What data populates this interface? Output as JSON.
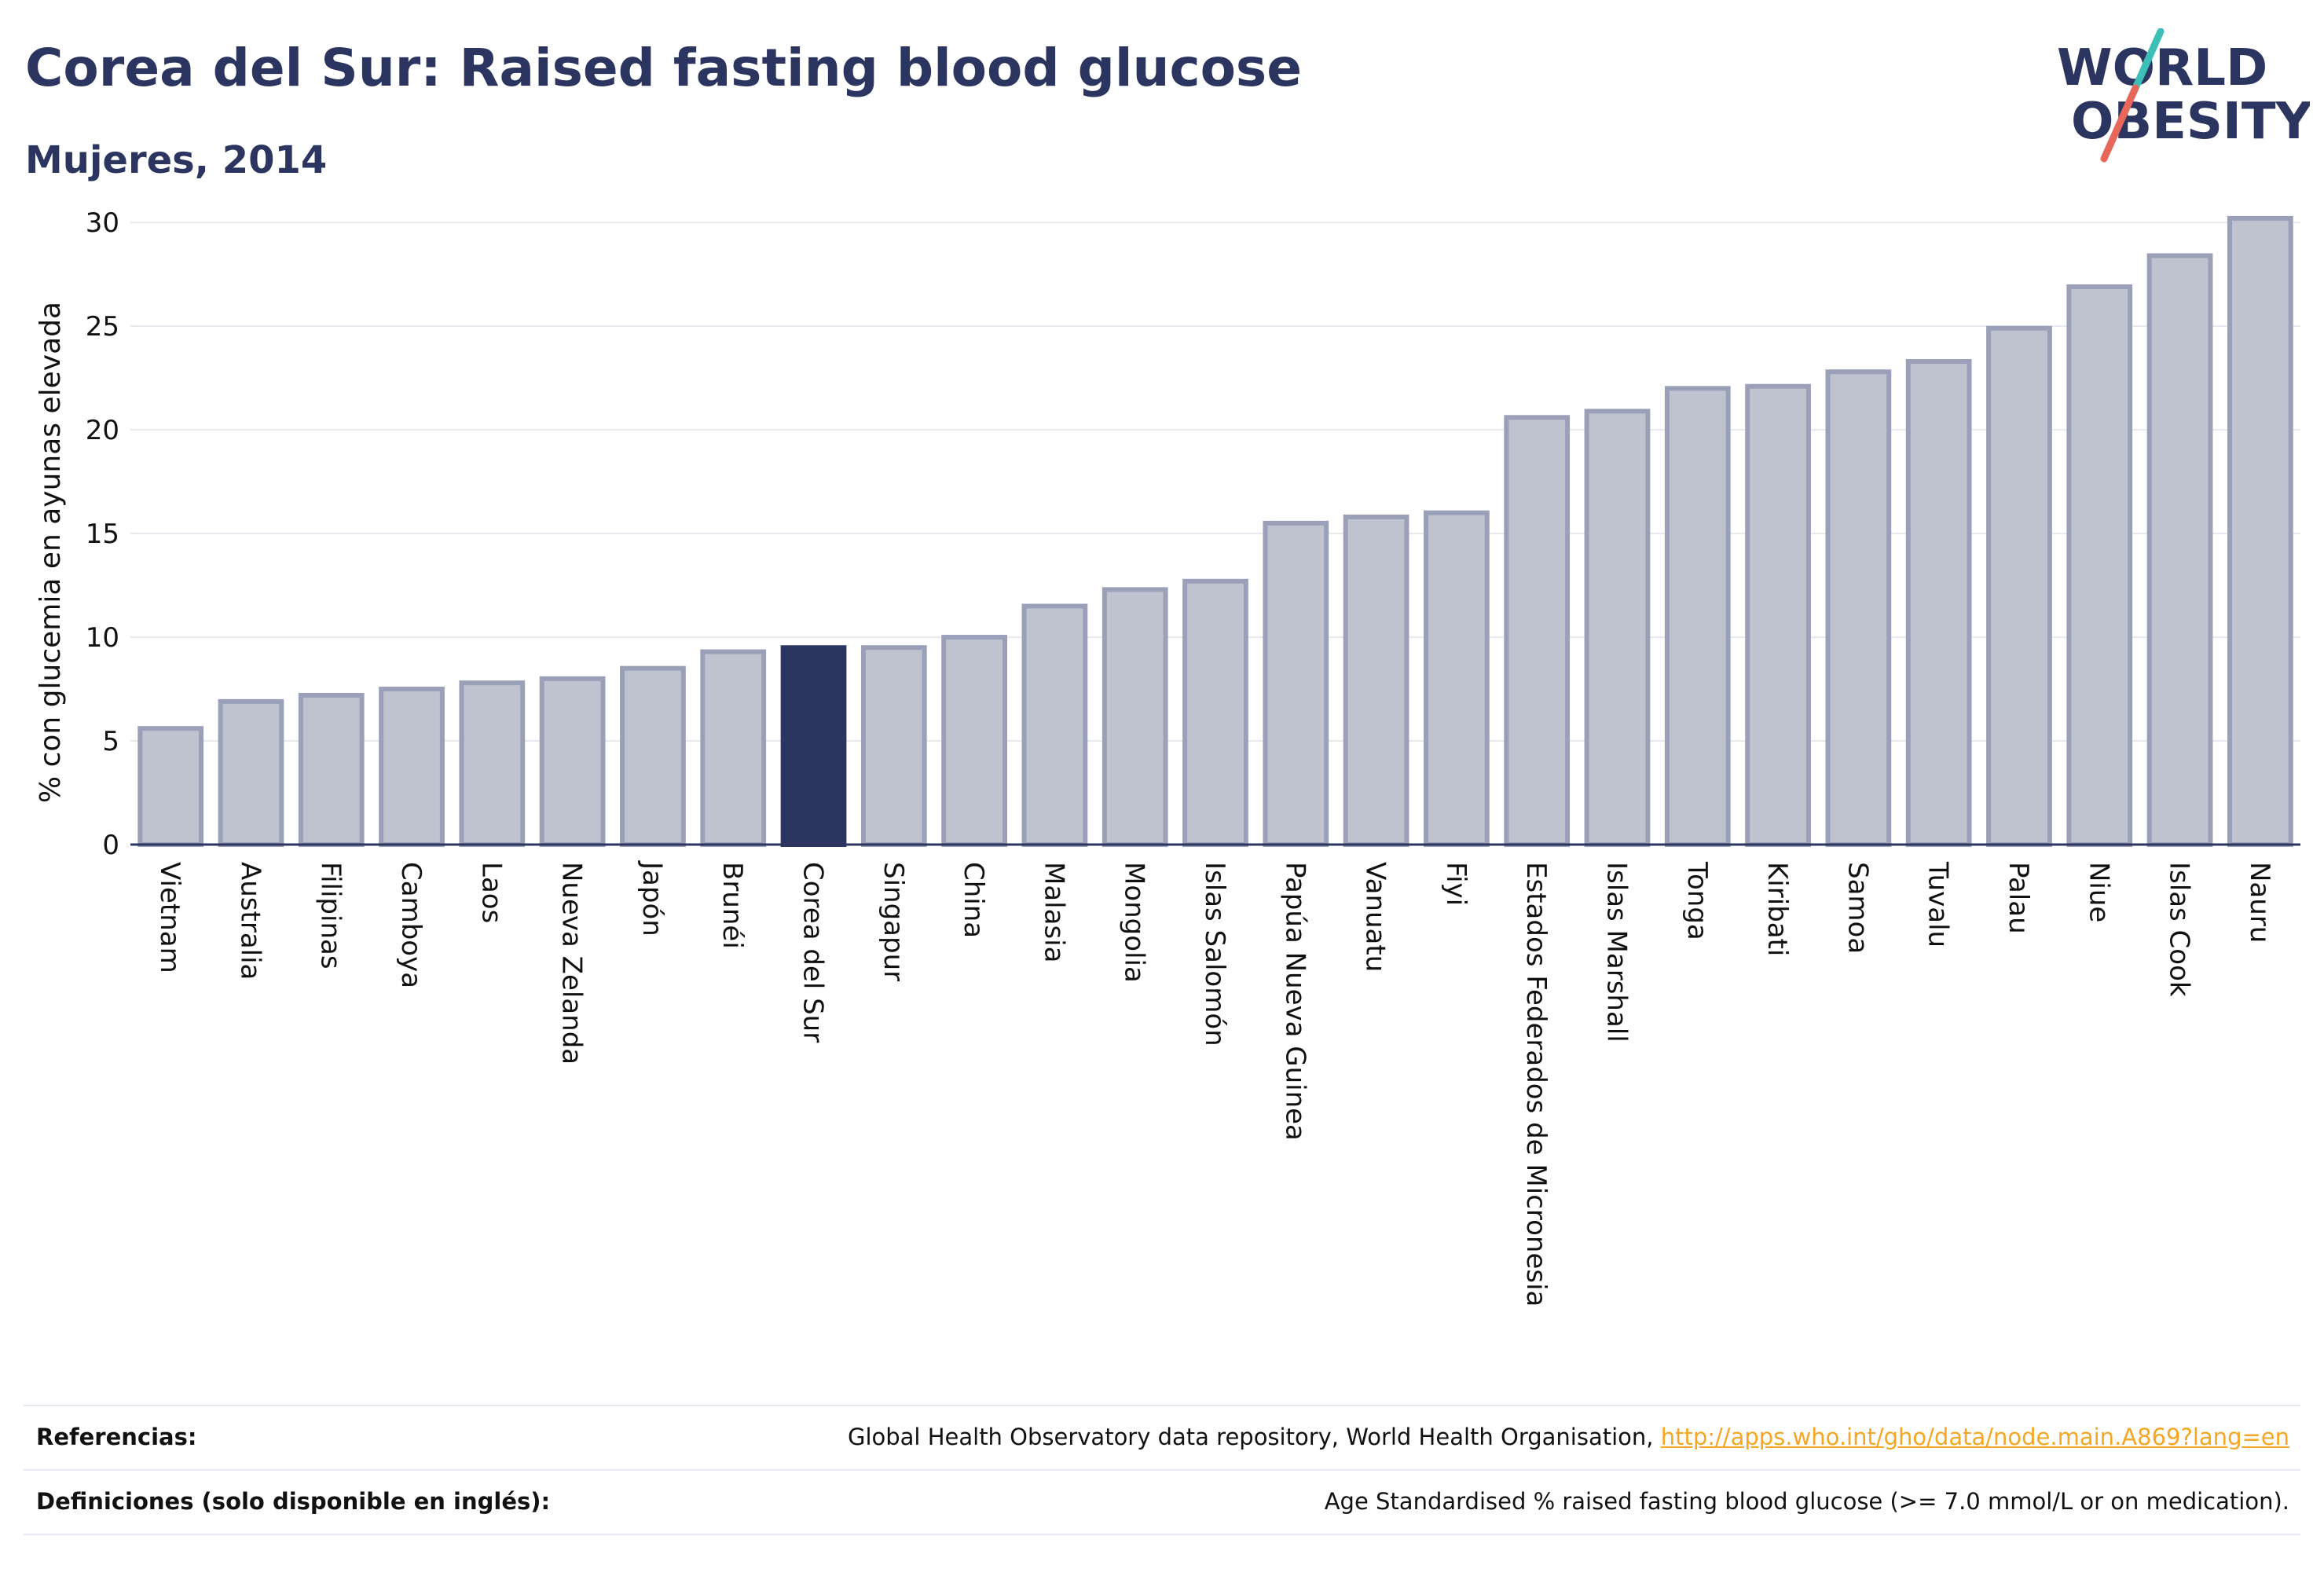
{
  "header": {
    "title": "Corea del Sur: Raised fasting blood glucose",
    "subtitle": "Mujeres, 2014"
  },
  "logo": {
    "line1": "WORLD",
    "line2": "OBESITY",
    "colors": {
      "text": "#2b3560",
      "slash_red": "#e8665a",
      "slash_teal": "#3dbfb8"
    }
  },
  "chart_data": {
    "type": "bar",
    "title": "Corea del Sur: Raised fasting blood glucose",
    "subtitle": "Mujeres, 2014",
    "xlabel": "",
    "ylabel": "% con glucemia en ayunas elevada",
    "ylim": [
      0,
      30.5
    ],
    "yticks": [
      0,
      5,
      10,
      15,
      20,
      25,
      30
    ],
    "grid": true,
    "highlight": "Corea del Sur",
    "colors": {
      "bar": "#bfc3d0",
      "bar_border": "#9aa0b8",
      "highlight": "#2b3560"
    },
    "categories": [
      "Vietnam",
      "Australia",
      "Filipinas",
      "Camboya",
      "Laos",
      "Nueva Zelanda",
      "Japón",
      "Brunéi",
      "Corea del Sur",
      "Singapur",
      "China",
      "Malasia",
      "Mongolia",
      "Islas Salomón",
      "Papúa Nueva Guinea",
      "Vanuatu",
      "Fiyi",
      "Estados Federados de Micronesia",
      "Islas Marshall",
      "Tonga",
      "Kiribati",
      "Samoa",
      "Tuvalu",
      "Palau",
      "Niue",
      "Islas Cook",
      "Nauru"
    ],
    "values": [
      5.6,
      6.9,
      7.2,
      7.5,
      7.8,
      8.0,
      8.5,
      9.3,
      9.5,
      9.5,
      10.0,
      11.5,
      12.3,
      12.7,
      15.5,
      15.8,
      16.0,
      20.6,
      20.9,
      22.0,
      22.1,
      22.8,
      23.3,
      24.9,
      26.9,
      28.4,
      30.2
    ]
  },
  "references": {
    "ref_label": "Referencias:",
    "ref_text": "Global Health Observatory data repository, World Health Organisation,",
    "ref_link": "http://apps.who.int/gho/data/node.main.A869?lang=en",
    "def_label": "Definiciones (solo disponible en inglés):",
    "def_text": "Age Standardised % raised fasting blood glucose (>= 7.0 mmol/L or on medication)."
  }
}
